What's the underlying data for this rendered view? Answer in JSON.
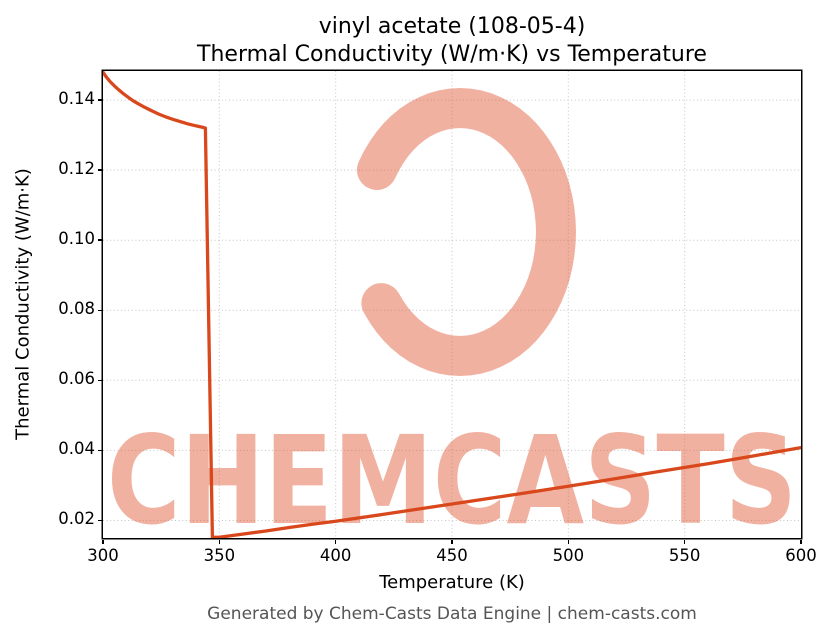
{
  "header": {
    "title_line1": "vinyl acetate (108-05-4)",
    "title_line2": "Thermal Conductivity (W/m·K) vs Temperature"
  },
  "footer": {
    "text": "Generated by Chem-Casts Data Engine | chem-casts.com"
  },
  "watermark": {
    "text": "CHEMCASTS",
    "color": "#e0512e"
  },
  "chart_data": {
    "type": "line",
    "title": "vinyl acetate (108-05-4) — Thermal Conductivity (W/m·K) vs Temperature",
    "xlabel": "Temperature (K)",
    "ylabel": "Thermal Conductivity (W/m·K)",
    "xlim": [
      300,
      600
    ],
    "ylim": [
      0.015,
      0.1483
    ],
    "x_ticks": [
      300,
      350,
      400,
      450,
      500,
      550,
      600
    ],
    "x_tick_labels": [
      "300",
      "350",
      "400",
      "450",
      "500",
      "550",
      "600"
    ],
    "y_ticks": [
      0.02,
      0.04,
      0.06,
      0.08,
      0.1,
      0.12,
      0.14
    ],
    "y_tick_labels": [
      "0.02",
      "0.04",
      "0.06",
      "0.08",
      "0.10",
      "0.12",
      "0.14"
    ],
    "grid": true,
    "legend": "none",
    "line_color": "#d9481c",
    "series": [
      {
        "name": "thermal conductivity",
        "points": [
          [
            300,
            0.148
          ],
          [
            301,
            0.147
          ],
          [
            302,
            0.1461
          ],
          [
            303,
            0.1453
          ],
          [
            305,
            0.144
          ],
          [
            307,
            0.1428
          ],
          [
            309,
            0.1417
          ],
          [
            311,
            0.1407
          ],
          [
            313,
            0.1398
          ],
          [
            315,
            0.139
          ],
          [
            318,
            0.1379
          ],
          [
            321,
            0.1369
          ],
          [
            324,
            0.136
          ],
          [
            327,
            0.1352
          ],
          [
            330,
            0.1345
          ],
          [
            333,
            0.1339
          ],
          [
            336,
            0.1333
          ],
          [
            339,
            0.1328
          ],
          [
            341,
            0.1325
          ],
          [
            343,
            0.1322
          ],
          [
            344,
            0.132
          ],
          [
            347,
            0.0152
          ],
          [
            350,
            0.0152
          ],
          [
            360,
            0.0161
          ],
          [
            370,
            0.017
          ],
          [
            380,
            0.018
          ],
          [
            390,
            0.0189
          ],
          [
            400,
            0.0198
          ],
          [
            420,
            0.0217
          ],
          [
            440,
            0.0237
          ],
          [
            460,
            0.0257
          ],
          [
            480,
            0.0277
          ],
          [
            500,
            0.0298
          ],
          [
            520,
            0.0319
          ],
          [
            540,
            0.0341
          ],
          [
            560,
            0.0362
          ],
          [
            580,
            0.0385
          ],
          [
            600,
            0.0408
          ]
        ]
      }
    ]
  }
}
